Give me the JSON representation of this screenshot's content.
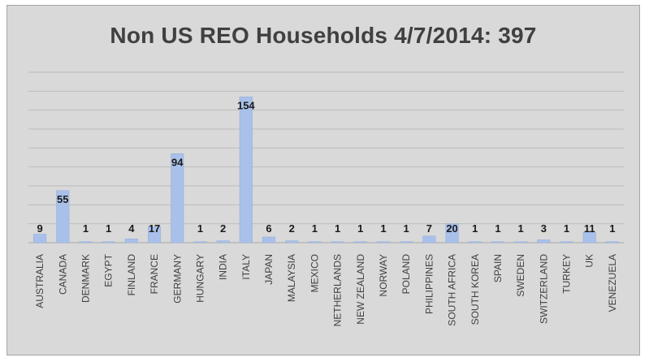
{
  "chart_data": {
    "type": "bar",
    "title": "Non US REO Households 4/7/2014:  397",
    "xlabel": "",
    "ylabel": "",
    "ylim": [
      0,
      180
    ],
    "grid": true,
    "categories": [
      "AUSTRALIA",
      "CANADA",
      "DENMARK",
      "EGYPT",
      "FINLAND",
      "FRANCE",
      "GERMANY",
      "HUNGARY",
      "INDIA",
      "ITALY",
      "JAPAN",
      "MALAYSIA",
      "MEXICO",
      "NETHERLANDS",
      "NEW ZEALAND",
      "NORWAY",
      "POLAND",
      "PHILIPPINES",
      "SOUTH AFRICA",
      "SOUTH KOREA",
      "SPAIN",
      "SWEDEN",
      "SWITZERLAND",
      "TURKEY",
      "UK",
      "VENEZUELA"
    ],
    "values": [
      9,
      55,
      1,
      1,
      4,
      17,
      94,
      1,
      2,
      154,
      6,
      2,
      1,
      1,
      1,
      1,
      1,
      7,
      20,
      1,
      1,
      1,
      3,
      1,
      11,
      1
    ],
    "bar_color": "#a9c1ea",
    "background": "#d9d9d9",
    "grid_color": "#bcbcbc"
  }
}
